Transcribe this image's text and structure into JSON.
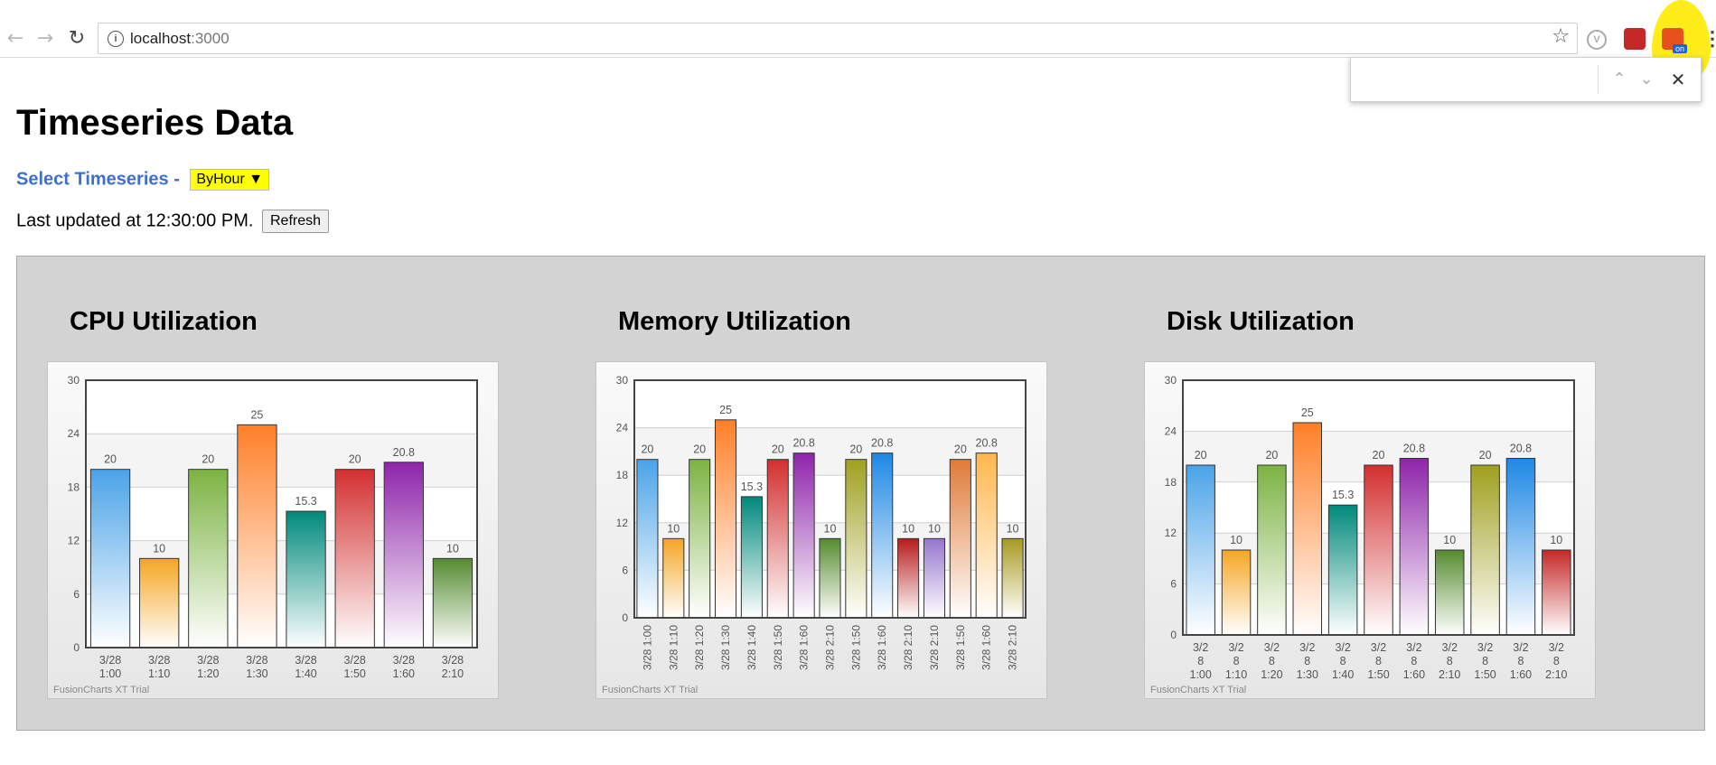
{
  "browser": {
    "url_host": "localhost",
    "url_port": ":3000",
    "back_icon": "arrow-left-icon",
    "forward_icon": "arrow-right-icon",
    "reload_icon": "reload-icon",
    "star_icon": "star-icon",
    "ext_v_label": "V",
    "ext_on_badge": "on",
    "find_placeholder": ""
  },
  "page": {
    "title": "Timeseries Data",
    "select_label": "Select Timeseries -",
    "select_value": "ByHour",
    "last_updated": "Last updated at 12:30:00 PM.",
    "refresh_label": "Refresh"
  },
  "watermark": "FusionCharts XT Trial",
  "charts": [
    {
      "title": "CPU Utilization"
    },
    {
      "title": "Memory Utilization"
    },
    {
      "title": "Disk Utilization"
    }
  ],
  "chart_data": [
    {
      "type": "bar",
      "title": "CPU Utilization",
      "categories": [
        "3/28 1:00",
        "3/28 1:10",
        "3/28 1:20",
        "3/28 1:30",
        "3/28 1:40",
        "3/28 1:50",
        "3/28 1:60",
        "3/28 2:10"
      ],
      "values": [
        20,
        10,
        20,
        25,
        15.3,
        20,
        20.8,
        10
      ],
      "yticks": [
        "0",
        "6",
        "12",
        "18",
        "24",
        "30"
      ],
      "ylim": [
        0,
        30
      ],
      "label_style": "two-line",
      "colors": [
        "#4aa3e8",
        "#f5a623",
        "#7cb342",
        "#ff7f27",
        "#00897b",
        "#d32f2f",
        "#8e24aa",
        "#558b2f"
      ],
      "grid": true
    },
    {
      "type": "bar",
      "title": "Memory Utilization",
      "categories": [
        "3/28 1:00",
        "3/28 1:10",
        "3/28 1:20",
        "3/28 1:30",
        "3/28 1:40",
        "3/28 1:50",
        "3/28 1:60",
        "3/28 2:10",
        "3/28 1:50",
        "3/28 1:60",
        "3/28 2:10",
        "3/28 2:10",
        "3/28 1:50",
        "3/28 1:60",
        "3/28 2:10"
      ],
      "values": [
        20,
        10,
        20,
        25,
        15.3,
        20,
        20.8,
        10,
        20,
        20.8,
        10,
        10,
        20,
        20.8,
        10
      ],
      "yticks": [
        "0",
        "6",
        "12",
        "18",
        "24",
        "30"
      ],
      "ylim": [
        0,
        30
      ],
      "label_style": "rotated",
      "colors": [
        "#4aa3e8",
        "#f5a623",
        "#7cb342",
        "#ff7f27",
        "#00897b",
        "#d32f2f",
        "#8e24aa",
        "#558b2f",
        "#a0a020",
        "#1e88e5",
        "#b71c1c",
        "#9575cd",
        "#e07b39",
        "#ffb74d",
        "#a89a20"
      ],
      "grid": true
    },
    {
      "type": "bar",
      "title": "Disk Utilization",
      "categories": [
        "3/28 1:00",
        "3/28 1:10",
        "3/28 1:20",
        "3/28 1:30",
        "3/28 1:40",
        "3/28 1:50",
        "3/28 1:60",
        "3/28 2:10",
        "3/28 1:50",
        "3/28 1:60",
        "3/28 2:10"
      ],
      "values": [
        20,
        10,
        20,
        25,
        15.3,
        20,
        20.8,
        10,
        20,
        20.8,
        10
      ],
      "yticks": [
        "0",
        "6",
        "12",
        "18",
        "24",
        "30"
      ],
      "ylim": [
        0,
        30
      ],
      "label_style": "three-line",
      "colors": [
        "#4aa3e8",
        "#f5a623",
        "#7cb342",
        "#ff7f27",
        "#00897b",
        "#d32f2f",
        "#8e24aa",
        "#558b2f",
        "#a0a020",
        "#1e88e5",
        "#c62828"
      ],
      "grid": true
    }
  ]
}
